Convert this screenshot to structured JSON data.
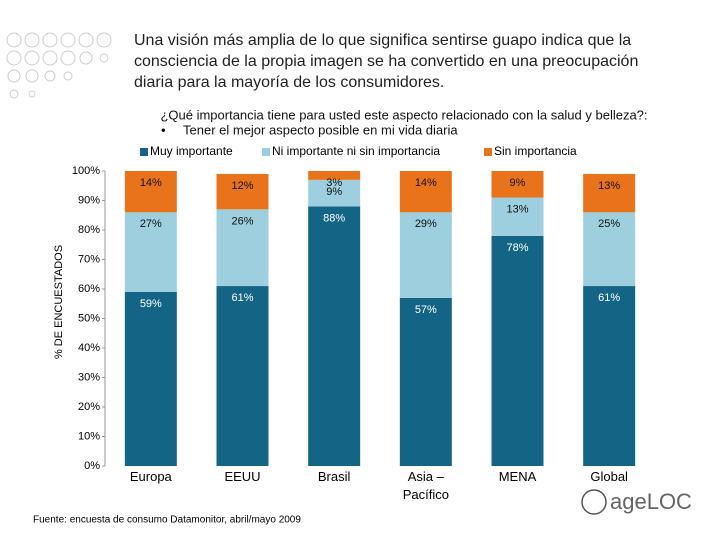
{
  "header": {
    "title_lines": [
      "Una visión más amplia de lo que significa sentirse guapo indica que la",
      "consciencia de la propia imagen se ha convertido en una preocupación",
      "diaria para la mayoría de los consumidores."
    ]
  },
  "chart_data": {
    "type": "stacked_bar",
    "title": "¿Qué importancia tiene para usted este aspecto relacionado con la salud y belleza?:",
    "subtitle": "Tener el mejor aspecto posible en mi vida diaria",
    "y_label": "% DE ENCUESTADOS",
    "categories": [
      "Europa",
      "EEUU",
      "Brasil",
      "Asia – Pacífico",
      "MENA",
      "Global"
    ],
    "series": [
      {
        "name": "Muy importante",
        "color": "#146585",
        "values": [
          59,
          61,
          88,
          57,
          78,
          61
        ],
        "value_labels": [
          "59%",
          "61%",
          "88%",
          "57%",
          "78%",
          "61%"
        ]
      },
      {
        "name": "Ni importante ni sin importancia",
        "color": "#9dcfdf",
        "values": [
          27,
          26,
          9,
          29,
          13,
          25
        ],
        "value_labels": [
          "27%",
          "26%",
          "9%",
          "29%",
          "13%",
          "25%"
        ]
      },
      {
        "name": "Sin importancia",
        "color": "#e8731a",
        "values": [
          14,
          12,
          3,
          14,
          9,
          13
        ],
        "value_labels": [
          "14%",
          "12%",
          "3%",
          "14%",
          "9%",
          "13%"
        ]
      }
    ],
    "ylim": [
      0,
      100
    ],
    "yticks": [
      {
        "value": 0,
        "label": "0%"
      },
      {
        "value": 10,
        "label": "10%"
      },
      {
        "value": 20,
        "label": "20%"
      },
      {
        "value": 30,
        "label": "30%"
      },
      {
        "value": 40,
        "label": "40%"
      },
      {
        "value": 50,
        "label": "50%"
      },
      {
        "value": 60,
        "label": "60%"
      },
      {
        "value": 70,
        "label": "70%"
      },
      {
        "value": 80,
        "label": "80%"
      },
      {
        "value": 90,
        "label": "90%"
      },
      {
        "value": 100,
        "label": "100%"
      }
    ],
    "grid": false
  },
  "footer": {
    "source": "Fuente: encuesta de consumo Datamonitor, abril/mayo 2009",
    "logo": "ageLOC"
  }
}
